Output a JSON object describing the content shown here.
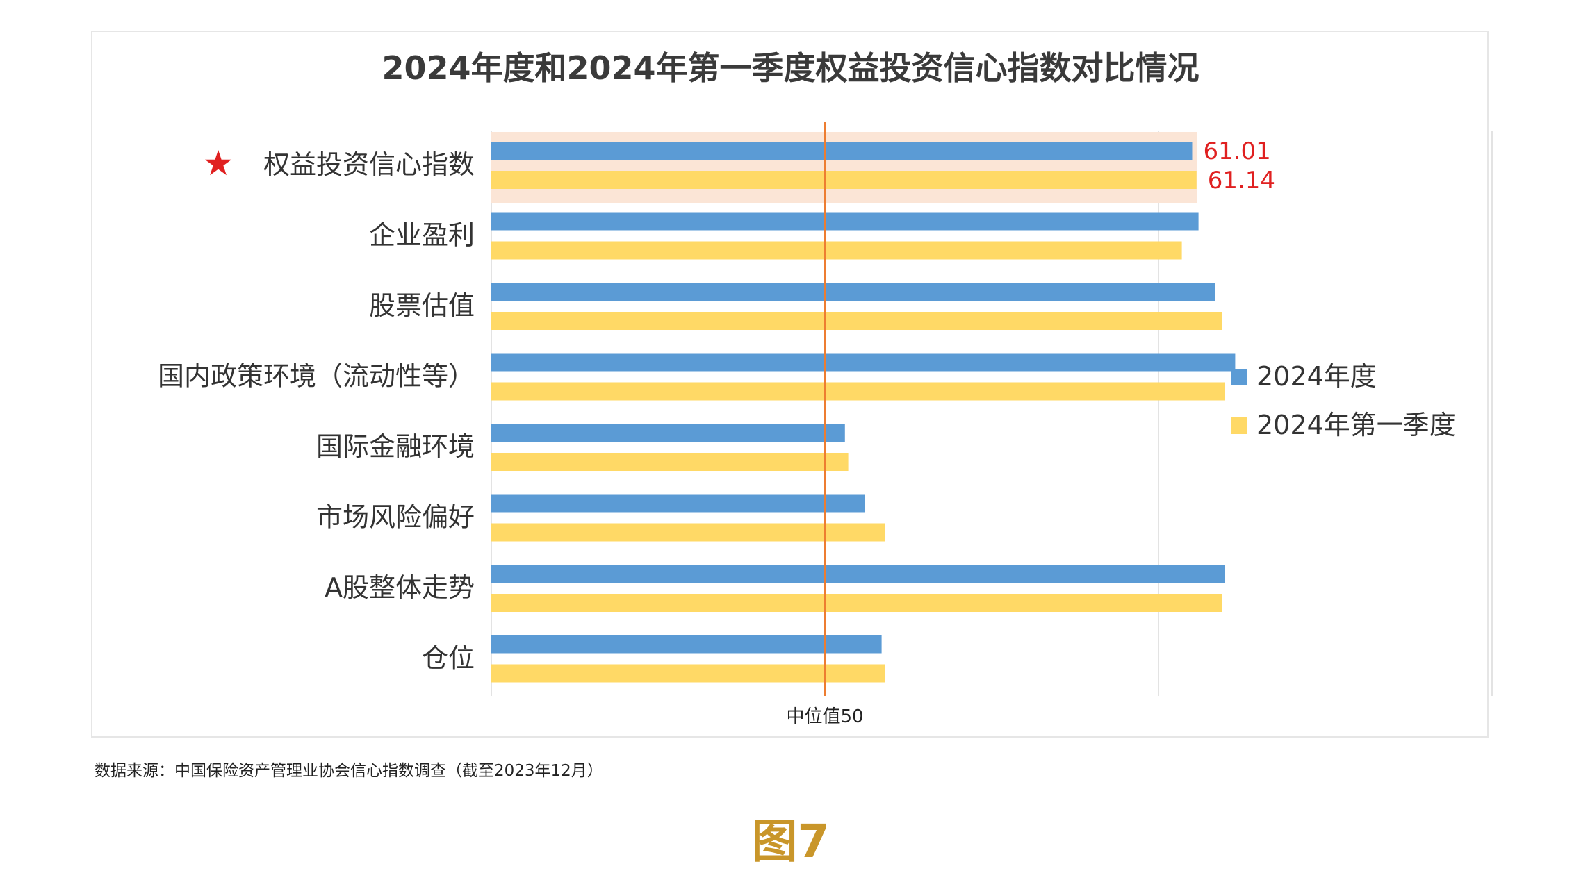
{
  "chart_data": {
    "type": "bar",
    "orientation": "horizontal",
    "title": "2024年度和2024年第一季度权益投资信心指数对比情况",
    "categories": [
      "权益投资信心指数",
      "企业盈利",
      "股票估值",
      "国内政策环境（流动性等）",
      "国际金融环境",
      "市场风险偏好",
      "A股整体走势",
      "仓位"
    ],
    "series": [
      {
        "name": "2024年度",
        "color": "#5b9bd5",
        "values": [
          61.01,
          61.2,
          61.7,
          62.3,
          50.6,
          51.2,
          62.0,
          51.7
        ]
      },
      {
        "name": "2024年第一季度",
        "color": "#ffd966",
        "values": [
          61.14,
          60.7,
          61.9,
          62.0,
          50.7,
          51.8,
          61.9,
          51.8
        ]
      }
    ],
    "xlim": [
      40,
      70
    ],
    "median_line": {
      "value": 50,
      "label": "中位值50",
      "color": "#ed7d31"
    },
    "highlight": {
      "category": "权益投资信心指数",
      "marker": "★",
      "marker_color": "#e02020",
      "labels": [
        "61.01",
        "61.14"
      ],
      "label_color": "#e02020",
      "band_color": "#fbe5d6"
    },
    "legend_position": "right",
    "grid": "vertical"
  },
  "source_text": "数据来源：中国保险资产管理业协会信心指数调查（截至2023年12月）",
  "figure_label": "图7"
}
